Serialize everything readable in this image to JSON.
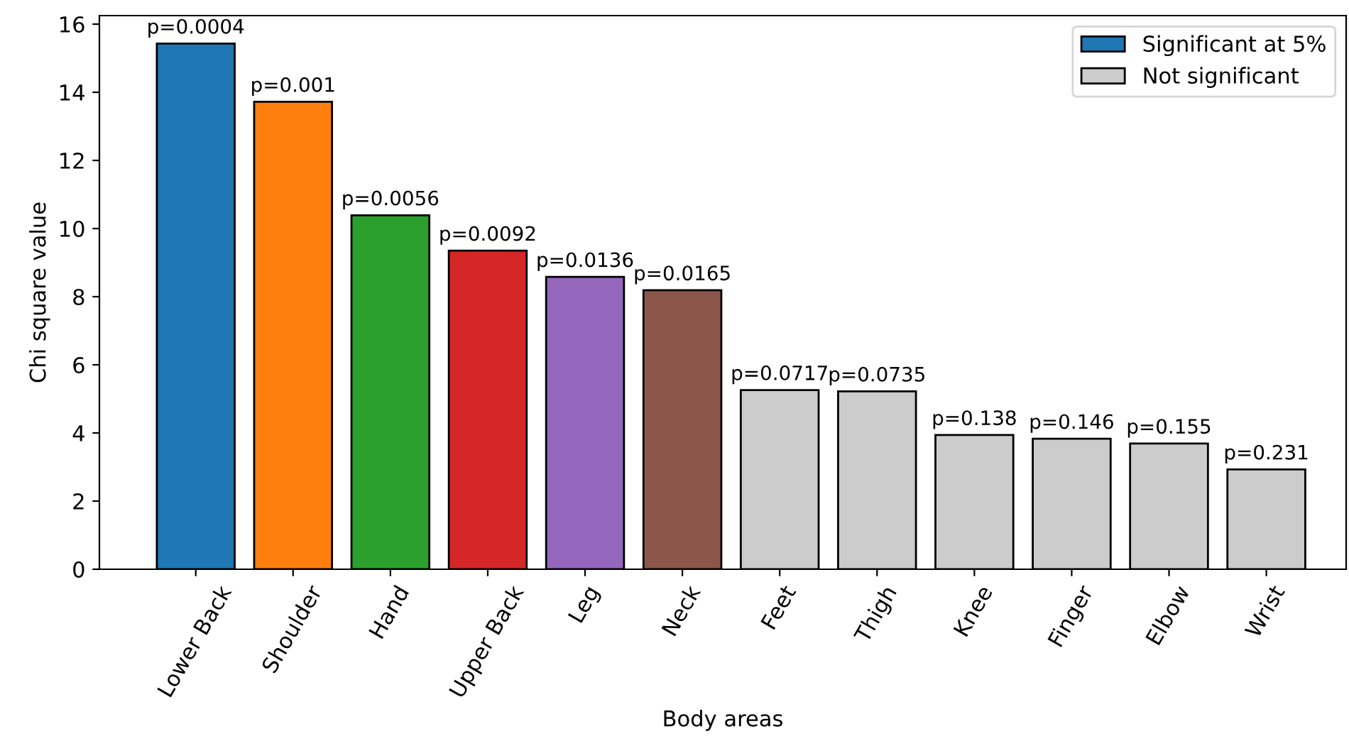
{
  "chart_data": {
    "type": "bar",
    "xlabel": "Body areas",
    "ylabel": "Chi square value",
    "categories": [
      "Lower Back",
      "Shoulder",
      "Hand",
      "Upper Back",
      "Leg",
      "Neck",
      "Feet",
      "Thigh",
      "Knee",
      "Finger",
      "Elbow",
      "Wrist"
    ],
    "series": [
      {
        "name": "Significant at 5%",
        "color": "#1f77b4",
        "colors": [
          "#1f77b4",
          "#ff7f0e",
          "#2ca02c",
          "#d62728",
          "#9467bd",
          "#8c564b",
          null,
          null,
          null,
          null,
          null,
          null
        ],
        "values": [
          15.43,
          13.72,
          10.39,
          9.35,
          8.58,
          8.19,
          null,
          null,
          null,
          null,
          null,
          null
        ]
      },
      {
        "name": "Not significant",
        "color": "#cccccc",
        "values": [
          null,
          null,
          null,
          null,
          null,
          null,
          5.26,
          5.22,
          3.94,
          3.83,
          3.69,
          2.93
        ]
      }
    ],
    "annotations": [
      {
        "text": "p=0.0004",
        "x": "Lower Back",
        "y": 15.43
      },
      {
        "text": "p=0.001",
        "x": "Shoulder",
        "y": 13.72
      },
      {
        "text": "p=0.0056",
        "x": "Hand",
        "y": 10.39
      },
      {
        "text": "p=0.0092",
        "x": "Upper Back",
        "y": 9.35
      },
      {
        "text": "p=0.0136",
        "x": "Leg",
        "y": 8.58
      },
      {
        "text": "p=0.0165",
        "x": "Neck",
        "y": 8.19
      },
      {
        "text": "p=0.0717",
        "x": "Feet",
        "y": 5.26
      },
      {
        "text": "p=0.0735",
        "x": "Thigh",
        "y": 5.22
      },
      {
        "text": "p=0.138",
        "x": "Knee",
        "y": 3.94
      },
      {
        "text": "p=0.146",
        "x": "Finger",
        "y": 3.83
      },
      {
        "text": "p=0.155",
        "x": "Elbow",
        "y": 3.69
      },
      {
        "text": "p=0.231",
        "x": "Wrist",
        "y": 2.93
      }
    ],
    "ylim": [
      0,
      16.25
    ],
    "yticks": [
      0,
      2,
      4,
      6,
      8,
      10,
      12,
      14,
      16
    ],
    "grid": false,
    "legend": "top right"
  }
}
